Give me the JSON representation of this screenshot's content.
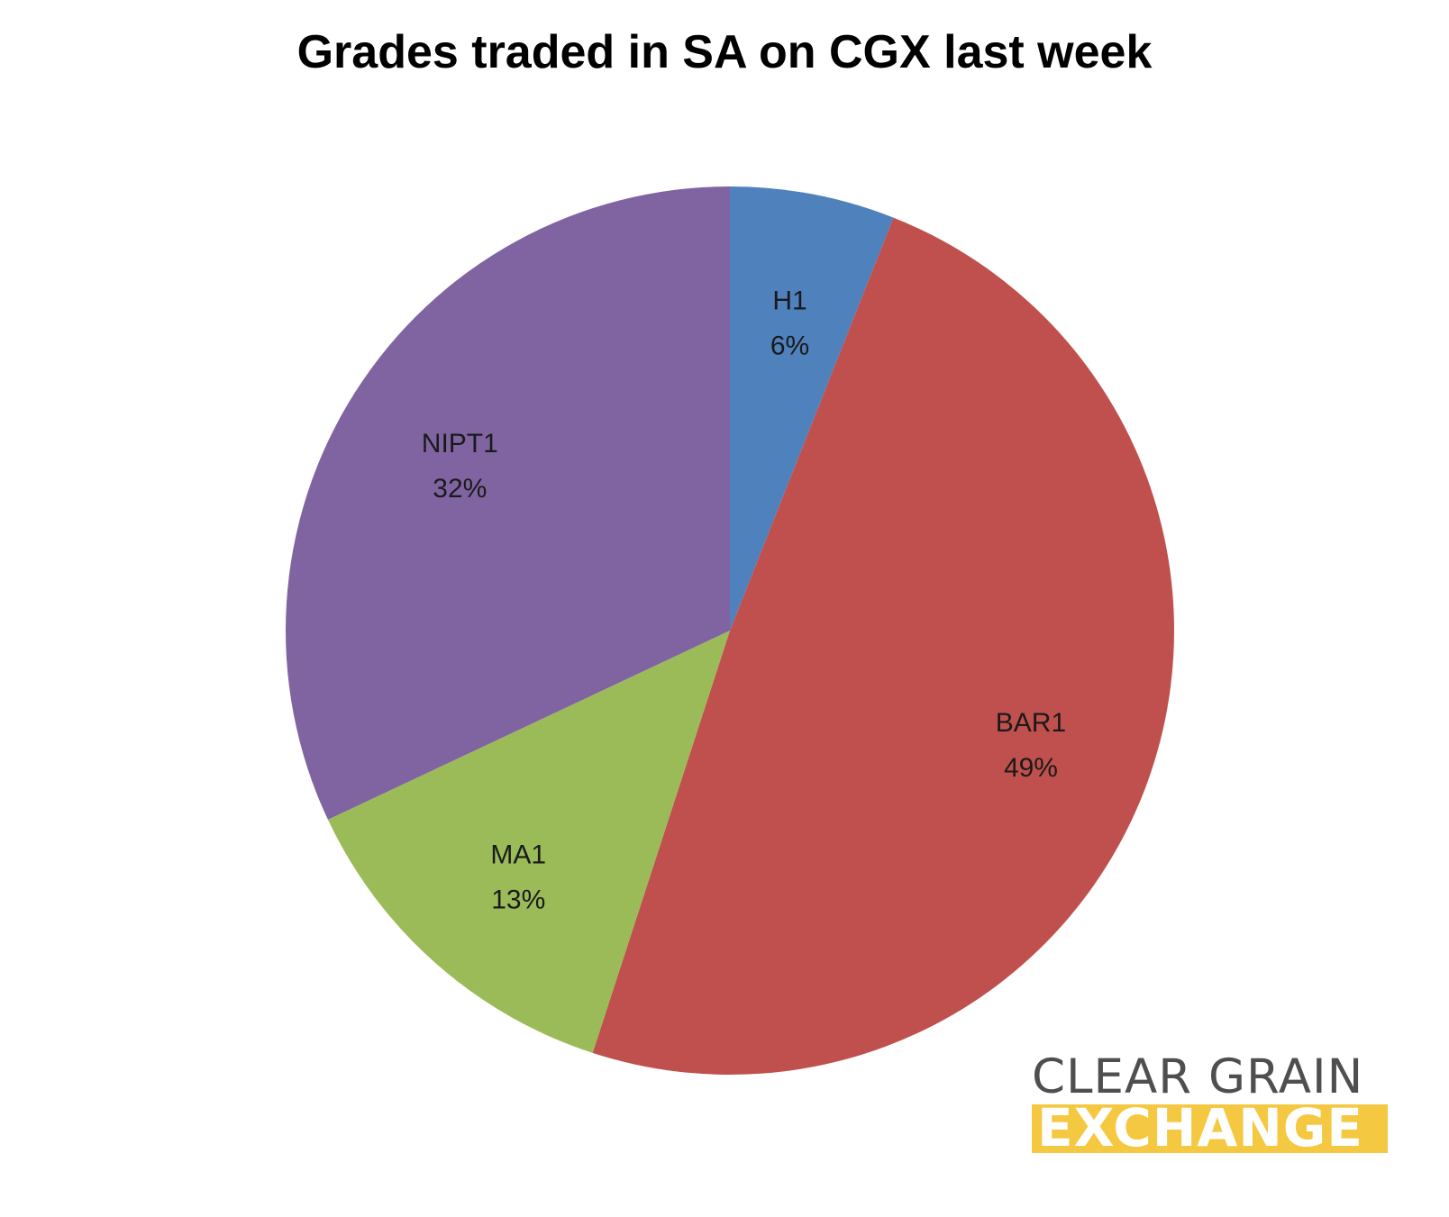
{
  "chart_data": {
    "type": "pie",
    "title": "Grades traded in SA on CGX last week",
    "slices": [
      {
        "label": "H1",
        "value": 6,
        "display": "6%",
        "color": "#4f81bd"
      },
      {
        "label": "BAR1",
        "value": 49,
        "display": "49%",
        "color": "#c0504d"
      },
      {
        "label": "MA1",
        "value": 13,
        "display": "13%",
        "color": "#9bbb59"
      },
      {
        "label": "NIPT1",
        "value": 32,
        "display": "32%",
        "color": "#8064a2"
      }
    ],
    "start_angle": "12 o'clock",
    "direction": "clockwise",
    "legend": "none"
  },
  "logo": {
    "line1": "CLEAR GRAIN",
    "line2": "EXCHANGE",
    "text_color": "#4f4f4f",
    "band_color": "#f5c842"
  }
}
